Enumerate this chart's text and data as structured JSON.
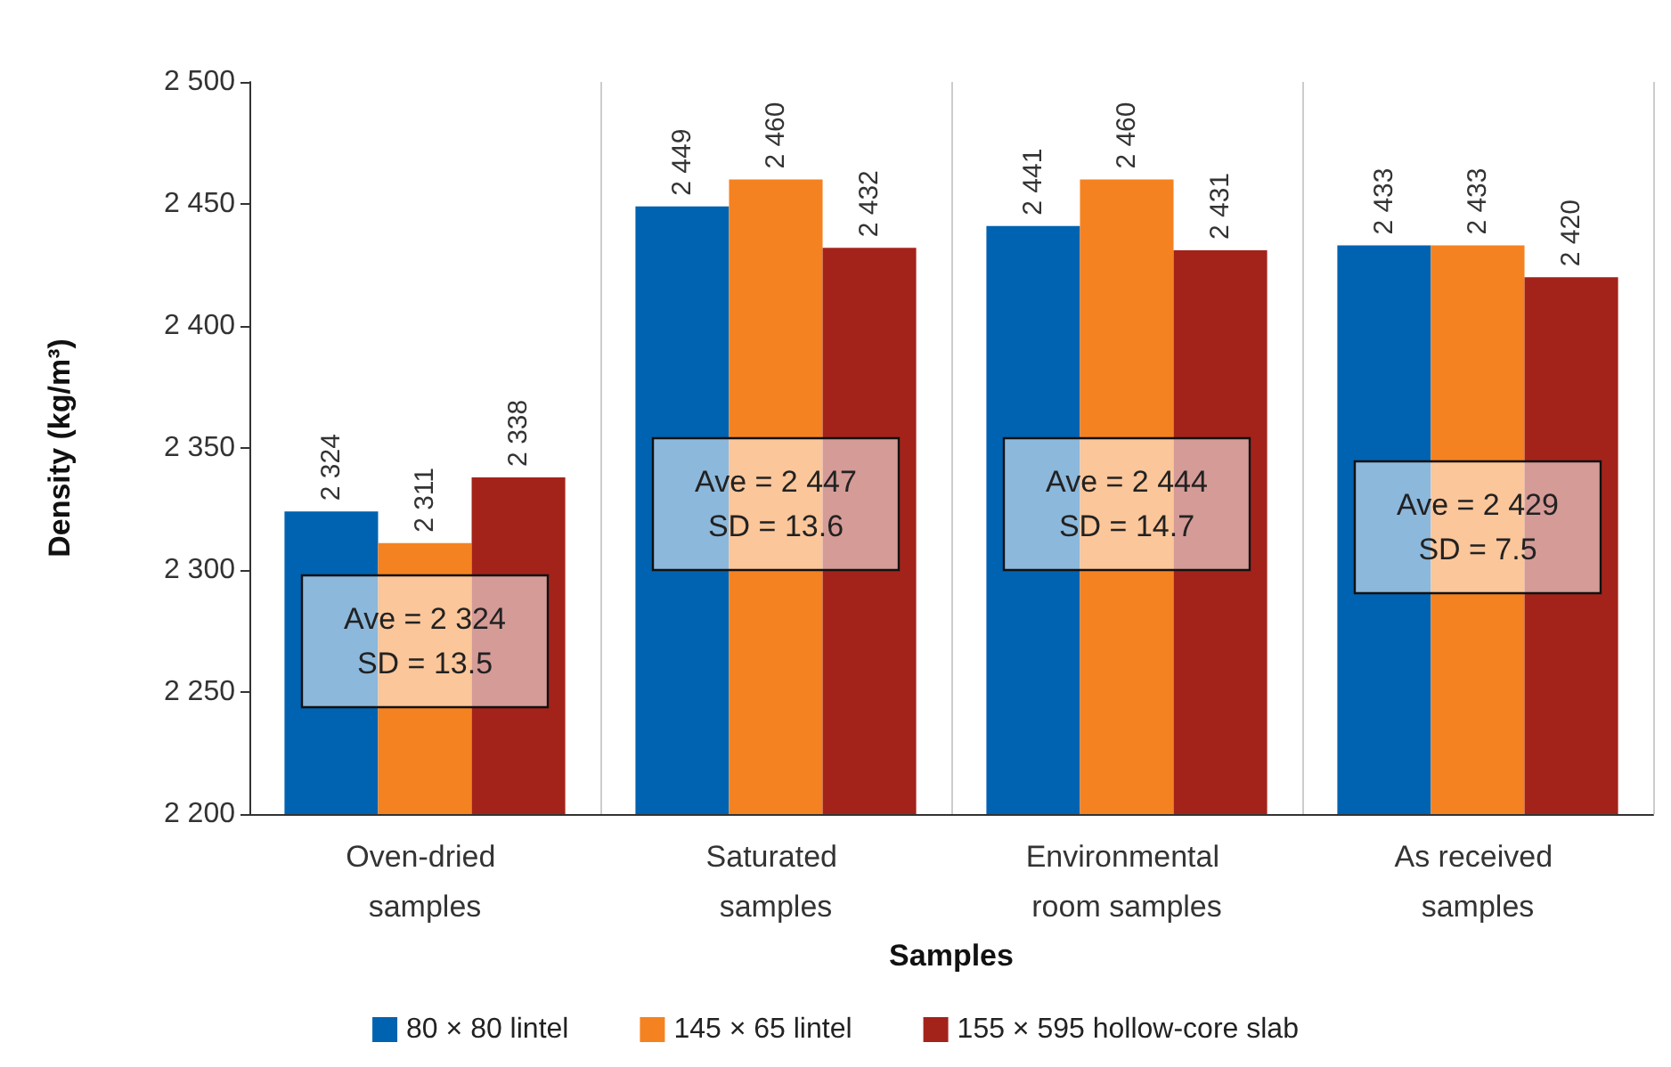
{
  "chart_data": {
    "type": "bar",
    "categories": [
      "Oven-dried samples",
      "Saturated samples",
      "Environmental room samples",
      "As received samples"
    ],
    "xlabel": "Samples",
    "ylabel": "Density (kg/m³)",
    "series": [
      {
        "name": "80 × 80 lintel",
        "color": "#0063b1",
        "values": [
          2324,
          2449,
          2441,
          2433
        ],
        "value_labels": [
          "2 324",
          "2 449",
          "2 441",
          "2 433"
        ]
      },
      {
        "name": "145 × 65 lintel",
        "color": "#f58220",
        "values": [
          2311,
          2460,
          2460,
          2433
        ],
        "value_labels": [
          "2 311",
          "2 460",
          "2 460",
          "2 433"
        ]
      },
      {
        "name": "155 × 595 hollow-core slab",
        "color": "#a3231a",
        "values": [
          2338,
          2432,
          2431,
          2420
        ],
        "value_labels": [
          "2 338",
          "2 432",
          "2 431",
          "2 420"
        ]
      }
    ],
    "ylim": [
      2200,
      2500
    ],
    "yticks": [
      {
        "value": 2200,
        "label": "2 200"
      },
      {
        "value": 2250,
        "label": "2 250"
      },
      {
        "value": 2300,
        "label": "2 300"
      },
      {
        "value": 2350,
        "label": "2 350"
      },
      {
        "value": 2400,
        "label": "2 400"
      },
      {
        "value": 2450,
        "label": "2 450"
      },
      {
        "value": 2500,
        "label": "2 500"
      }
    ],
    "annotations": [
      "Ave = 2 324\nSD = 13.5",
      "Ave = 2 447\nSD = 13.6",
      "Ave = 2 444\nSD = 14.7",
      "Ave = 2 429\nSD = 7.5"
    ],
    "grid": "x",
    "legend": "bottom"
  }
}
